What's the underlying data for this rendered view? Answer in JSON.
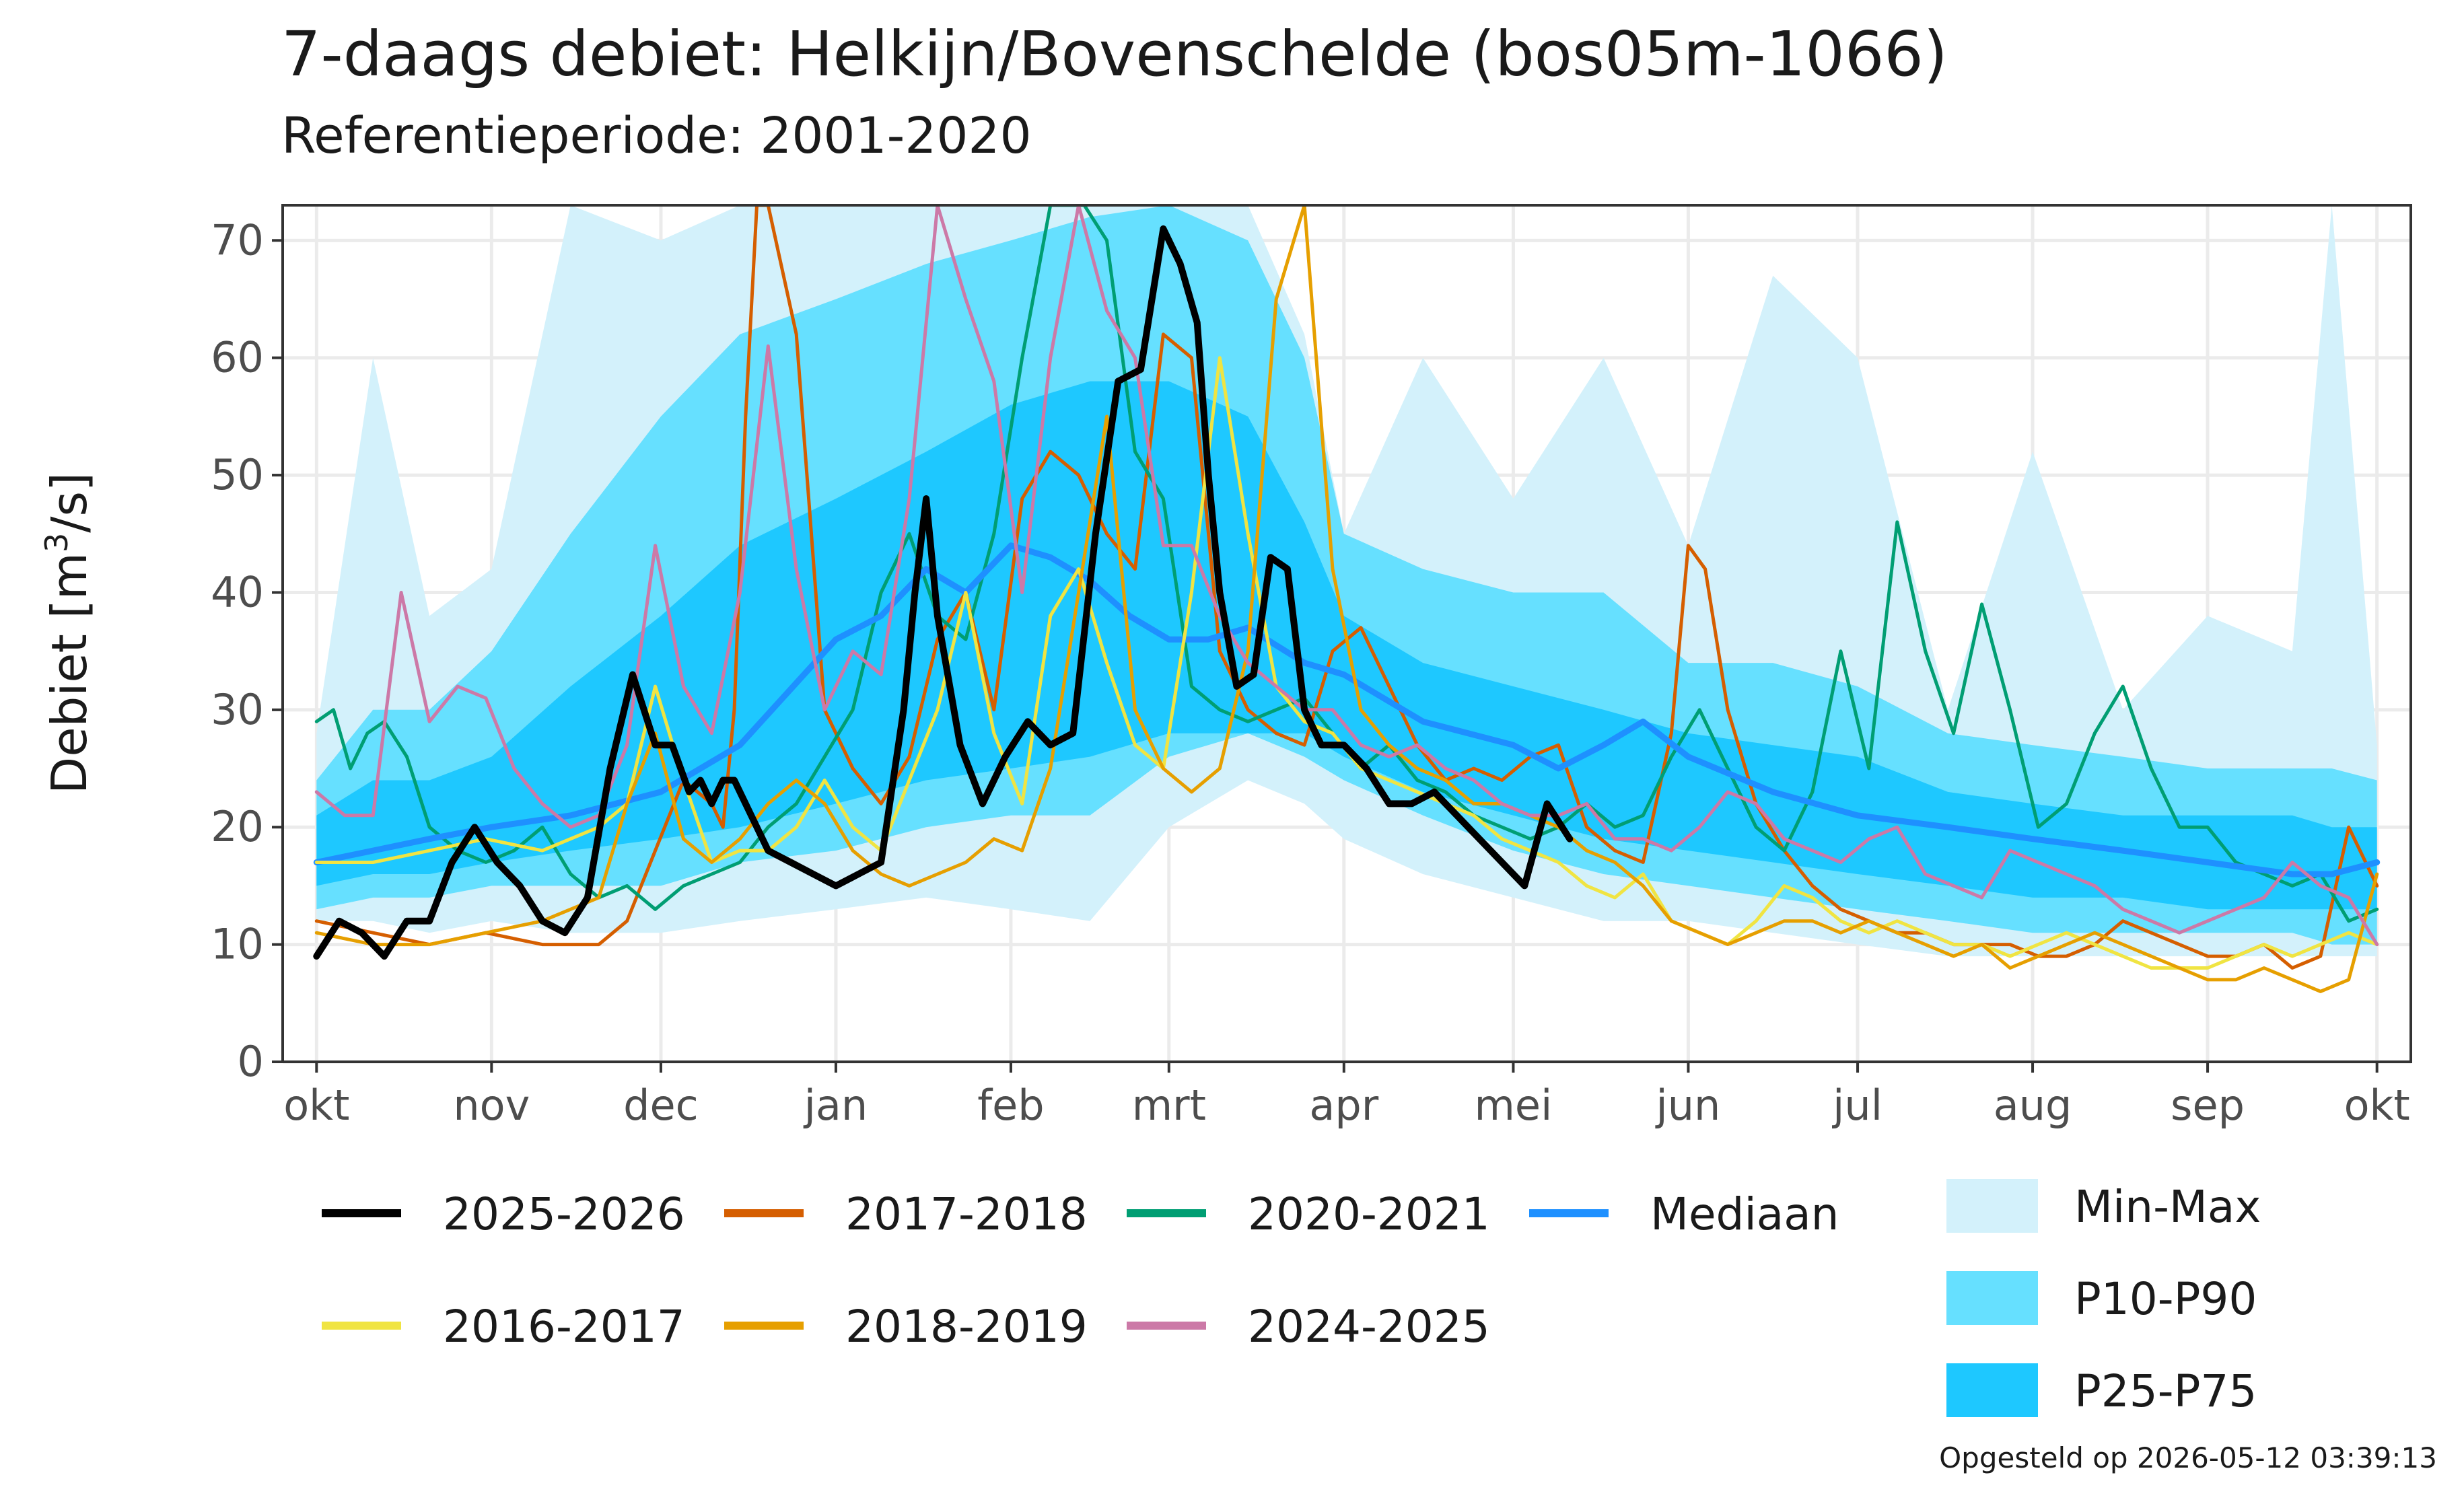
{
  "chart_data": {
    "type": "line",
    "title": "7-daags debiet: Helkijn/Bovenschelde (bos05m-1066)",
    "subtitle": "Referentieperiode: 2001-2020",
    "ylabel_main": "Debiet [m",
    "ylabel_sup": "3",
    "ylabel_end": "/s]",
    "caption": "Opgesteld op 2026-05-12 03:39:13",
    "ylim": [
      0,
      73
    ],
    "yticks": [
      0,
      10,
      20,
      30,
      40,
      50,
      60,
      70
    ],
    "xlim": [
      -6,
      371
    ],
    "month_ticks": [
      {
        "label": "okt",
        "day": 0
      },
      {
        "label": "nov",
        "day": 31
      },
      {
        "label": "dec",
        "day": 61
      },
      {
        "label": "jan",
        "day": 92
      },
      {
        "label": "feb",
        "day": 123
      },
      {
        "label": "mrt",
        "day": 151
      },
      {
        "label": "apr",
        "day": 182
      },
      {
        "label": "mei",
        "day": 212
      },
      {
        "label": "jun",
        "day": 243
      },
      {
        "label": "jul",
        "day": 273
      },
      {
        "label": "aug",
        "day": 304
      },
      {
        "label": "sep",
        "day": 335
      },
      {
        "label": "okt",
        "day": 365
      }
    ],
    "grid": true,
    "bands": {
      "day": [
        0,
        10,
        20,
        31,
        45,
        61,
        75,
        92,
        108,
        123,
        137,
        151,
        165,
        175,
        182,
        196,
        212,
        228,
        243,
        258,
        273,
        289,
        304,
        320,
        335,
        350,
        357,
        365
      ],
      "minmax_lo": [
        12,
        12,
        11,
        12,
        11,
        11,
        12,
        13,
        14,
        13,
        12,
        20,
        24,
        22,
        19,
        16,
        14,
        12,
        12,
        11,
        10,
        9,
        9,
        9,
        9,
        9,
        9,
        9
      ],
      "minmax_hi": [
        28,
        60,
        38,
        42,
        73,
        70,
        73,
        73,
        73,
        73,
        73,
        73,
        73,
        62,
        45,
        60,
        48,
        60,
        44,
        67,
        60,
        30,
        52,
        30,
        38,
        35,
        73,
        27
      ],
      "p10_lo": [
        13,
        14,
        14,
        15,
        15,
        15,
        17,
        18,
        20,
        21,
        21,
        26,
        28,
        26,
        24,
        21,
        18,
        16,
        15,
        14,
        13,
        12,
        11,
        11,
        11,
        11,
        10,
        10
      ],
      "p10_hi": [
        24,
        30,
        30,
        35,
        45,
        55,
        62,
        65,
        68,
        70,
        72,
        73,
        70,
        60,
        45,
        42,
        40,
        40,
        34,
        34,
        32,
        28,
        27,
        26,
        25,
        25,
        25,
        24
      ],
      "p25_lo": [
        15,
        16,
        16,
        17,
        18,
        19,
        20,
        22,
        24,
        25,
        26,
        28,
        28,
        28,
        26,
        23,
        21,
        19,
        18,
        17,
        16,
        15,
        14,
        14,
        13,
        13,
        13,
        13
      ],
      "p25_hi": [
        21,
        24,
        24,
        26,
        32,
        38,
        44,
        48,
        52,
        56,
        58,
        58,
        55,
        46,
        38,
        34,
        32,
        30,
        28,
        27,
        26,
        23,
        22,
        21,
        21,
        21,
        20,
        20
      ]
    },
    "series": [
      {
        "name": "2025-2026",
        "color": "#000000",
        "width": 10,
        "x": [
          0,
          4,
          8,
          12,
          16,
          20,
          24,
          28,
          32,
          36,
          40,
          44,
          48,
          52,
          56,
          60,
          63,
          66,
          68,
          70,
          72,
          74,
          76,
          80,
          84,
          88,
          92,
          96,
          100,
          104,
          106,
          108,
          110,
          114,
          118,
          122,
          126,
          130,
          134,
          138,
          142,
          146,
          150,
          153,
          156,
          158,
          160,
          163,
          166,
          169,
          172,
          175,
          178,
          182,
          186,
          190,
          194,
          198,
          202,
          206,
          210,
          214,
          218,
          222
        ],
        "y": [
          9,
          12,
          11,
          9,
          12,
          12,
          17,
          20,
          17,
          15,
          12,
          11,
          14,
          25,
          33,
          27,
          27,
          23,
          24,
          22,
          24,
          24,
          22,
          18,
          17,
          16,
          15,
          16,
          17,
          30,
          40,
          48,
          38,
          27,
          22,
          26,
          29,
          27,
          28,
          45,
          58,
          59,
          71,
          68,
          63,
          50,
          40,
          32,
          33,
          43,
          42,
          30,
          27,
          27,
          25,
          22,
          22,
          23,
          21,
          19,
          17,
          15,
          22,
          19
        ]
      },
      {
        "name": "2017-2018",
        "color": "#d55e00",
        "width": 5,
        "x": [
          0,
          10,
          20,
          30,
          40,
          50,
          55,
          60,
          65,
          70,
          72,
          74,
          76,
          78,
          80,
          85,
          90,
          95,
          100,
          105,
          110,
          115,
          120,
          125,
          130,
          135,
          140,
          145,
          150,
          155,
          160,
          165,
          170,
          175,
          180,
          185,
          190,
          195,
          200,
          205,
          210,
          215,
          220,
          225,
          230,
          235,
          240,
          243,
          246,
          250,
          255,
          260,
          265,
          270,
          275,
          280,
          285,
          290,
          295,
          300,
          305,
          310,
          315,
          320,
          325,
          330,
          335,
          340,
          345,
          350,
          355,
          360,
          365
        ],
        "y": [
          12,
          11,
          10,
          11,
          10,
          10,
          12,
          18,
          24,
          22,
          20,
          30,
          55,
          73,
          73,
          62,
          30,
          25,
          22,
          26,
          36,
          40,
          30,
          48,
          52,
          50,
          45,
          42,
          62,
          60,
          35,
          30,
          28,
          27,
          35,
          37,
          32,
          27,
          24,
          25,
          24,
          26,
          27,
          20,
          18,
          17,
          28,
          44,
          42,
          30,
          22,
          18,
          15,
          13,
          12,
          11,
          11,
          10,
          10,
          10,
          9,
          9,
          10,
          12,
          11,
          10,
          9,
          9,
          10,
          8,
          9,
          20,
          15
        ]
      },
      {
        "name": "2020-2021",
        "color": "#009e73",
        "width": 5,
        "x": [
          0,
          3,
          6,
          9,
          12,
          16,
          20,
          25,
          30,
          35,
          40,
          45,
          50,
          55,
          60,
          65,
          70,
          75,
          80,
          85,
          90,
          95,
          100,
          105,
          110,
          115,
          120,
          125,
          130,
          133,
          136,
          140,
          145,
          150,
          155,
          160,
          165,
          170,
          175,
          180,
          185,
          190,
          195,
          200,
          205,
          210,
          215,
          220,
          225,
          230,
          235,
          240,
          245,
          250,
          255,
          260,
          265,
          270,
          275,
          280,
          285,
          290,
          295,
          300,
          305,
          310,
          315,
          320,
          325,
          330,
          335,
          340,
          345,
          350,
          355,
          360,
          365
        ],
        "y": [
          29,
          30,
          25,
          28,
          29,
          26,
          20,
          18,
          17,
          18,
          20,
          16,
          14,
          15,
          13,
          15,
          16,
          17,
          20,
          22,
          26,
          30,
          40,
          45,
          38,
          36,
          45,
          60,
          73,
          73,
          73,
          70,
          52,
          48,
          32,
          30,
          29,
          30,
          31,
          28,
          25,
          27,
          24,
          23,
          21,
          20,
          19,
          20,
          22,
          20,
          21,
          26,
          30,
          25,
          20,
          18,
          23,
          35,
          25,
          46,
          35,
          28,
          39,
          30,
          20,
          22,
          28,
          32,
          25,
          20,
          20,
          17,
          16,
          15,
          16,
          12,
          13
        ]
      },
      {
        "name": "Mediaan",
        "color": "#1e90ff",
        "width": 9,
        "x": [
          0,
          10,
          20,
          31,
          45,
          61,
          75,
          92,
          100,
          108,
          115,
          123,
          130,
          137,
          144,
          151,
          158,
          165,
          175,
          182,
          196,
          212,
          220,
          228,
          235,
          243,
          258,
          273,
          289,
          304,
          320,
          335,
          350,
          357,
          365
        ],
        "y": [
          17,
          18,
          19,
          20,
          21,
          23,
          27,
          36,
          38,
          42,
          40,
          44,
          43,
          41,
          38,
          36,
          36,
          37,
          34,
          33,
          29,
          27,
          25,
          27,
          29,
          26,
          23,
          21,
          20,
          19,
          18,
          17,
          16,
          16,
          17
        ]
      },
      {
        "name": "2016-2017",
        "color": "#f0e442",
        "width": 5,
        "x": [
          0,
          10,
          20,
          30,
          40,
          50,
          55,
          60,
          65,
          70,
          75,
          80,
          85,
          90,
          95,
          100,
          105,
          110,
          115,
          120,
          125,
          130,
          135,
          140,
          145,
          150,
          155,
          160,
          165,
          170,
          175,
          180,
          185,
          190,
          195,
          200,
          205,
          210,
          215,
          220,
          225,
          230,
          235,
          240,
          245,
          250,
          255,
          260,
          265,
          270,
          275,
          280,
          285,
          290,
          295,
          300,
          305,
          310,
          315,
          320,
          325,
          330,
          335,
          340,
          345,
          350,
          355,
          360,
          365
        ],
        "y": [
          17,
          17,
          18,
          19,
          18,
          20,
          22,
          32,
          24,
          17,
          18,
          18,
          20,
          24,
          20,
          18,
          24,
          30,
          40,
          28,
          22,
          38,
          42,
          34,
          27,
          25,
          40,
          60,
          45,
          32,
          29,
          28,
          25,
          24,
          23,
          22,
          21,
          19,
          18,
          17,
          15,
          14,
          16,
          12,
          11,
          10,
          12,
          15,
          14,
          12,
          11,
          12,
          11,
          10,
          10,
          9,
          10,
          11,
          10,
          9,
          8,
          8,
          8,
          9,
          10,
          9,
          10,
          11,
          10
        ]
      },
      {
        "name": "2018-2019",
        "color": "#e69f00",
        "width": 5,
        "x": [
          0,
          10,
          20,
          30,
          40,
          50,
          55,
          60,
          65,
          70,
          75,
          80,
          85,
          90,
          95,
          100,
          105,
          110,
          115,
          120,
          125,
          130,
          135,
          140,
          145,
          150,
          155,
          160,
          165,
          170,
          175,
          180,
          185,
          190,
          195,
          200,
          205,
          210,
          215,
          220,
          225,
          230,
          235,
          240,
          245,
          250,
          255,
          260,
          265,
          270,
          275,
          280,
          285,
          290,
          295,
          300,
          305,
          310,
          315,
          320,
          325,
          330,
          335,
          340,
          345,
          350,
          355,
          360,
          365
        ],
        "y": [
          11,
          10,
          10,
          11,
          12,
          14,
          22,
          28,
          19,
          17,
          19,
          22,
          24,
          22,
          18,
          16,
          15,
          16,
          17,
          19,
          18,
          25,
          40,
          55,
          30,
          25,
          23,
          25,
          35,
          65,
          73,
          42,
          30,
          27,
          25,
          24,
          22,
          22,
          21,
          20,
          18,
          17,
          15,
          12,
          11,
          10,
          11,
          12,
          12,
          11,
          12,
          11,
          10,
          9,
          10,
          8,
          9,
          10,
          11,
          10,
          9,
          8,
          7,
          7,
          8,
          7,
          6,
          7,
          16
        ]
      },
      {
        "name": "2024-2025",
        "color": "#cc79a7",
        "width": 5,
        "x": [
          0,
          5,
          10,
          15,
          20,
          25,
          30,
          35,
          40,
          45,
          50,
          55,
          60,
          65,
          70,
          75,
          80,
          85,
          90,
          95,
          100,
          105,
          110,
          115,
          120,
          125,
          130,
          135,
          140,
          145,
          150,
          155,
          160,
          165,
          170,
          175,
          180,
          185,
          190,
          195,
          200,
          205,
          210,
          215,
          220,
          225,
          230,
          235,
          240,
          245,
          250,
          255,
          260,
          265,
          270,
          275,
          280,
          285,
          290,
          295,
          300,
          305,
          310,
          315,
          320,
          325,
          330,
          335,
          340,
          345,
          350,
          355,
          360,
          365
        ],
        "y": [
          23,
          21,
          21,
          40,
          29,
          32,
          31,
          25,
          22,
          20,
          21,
          27,
          44,
          32,
          28,
          40,
          61,
          42,
          30,
          35,
          33,
          48,
          73,
          65,
          58,
          40,
          60,
          73,
          64,
          60,
          44,
          44,
          38,
          34,
          32,
          30,
          30,
          27,
          26,
          27,
          25,
          24,
          22,
          21,
          21,
          22,
          19,
          19,
          18,
          20,
          23,
          22,
          19,
          18,
          17,
          19,
          20,
          16,
          15,
          14,
          18,
          17,
          16,
          15,
          13,
          12,
          11,
          12,
          13,
          14,
          17,
          15,
          14,
          10
        ]
      }
    ],
    "legend": {
      "lines": [
        {
          "label": "2025-2026",
          "color": "#000000"
        },
        {
          "label": "2017-2018",
          "color": "#d55e00"
        },
        {
          "label": "2020-2021",
          "color": "#009e73"
        },
        {
          "label": "Mediaan",
          "color": "#1e90ff"
        },
        {
          "label": "2016-2017",
          "color": "#f0e442"
        },
        {
          "label": "2018-2019",
          "color": "#e69f00"
        },
        {
          "label": "2024-2025",
          "color": "#cc79a7"
        }
      ],
      "bands": [
        {
          "label": "Min-Max",
          "color": "#d3f1fb"
        },
        {
          "label": "P10-P90",
          "color": "#66e0ff"
        },
        {
          "label": "P25-P75",
          "color": "#1ec8ff"
        }
      ]
    }
  }
}
